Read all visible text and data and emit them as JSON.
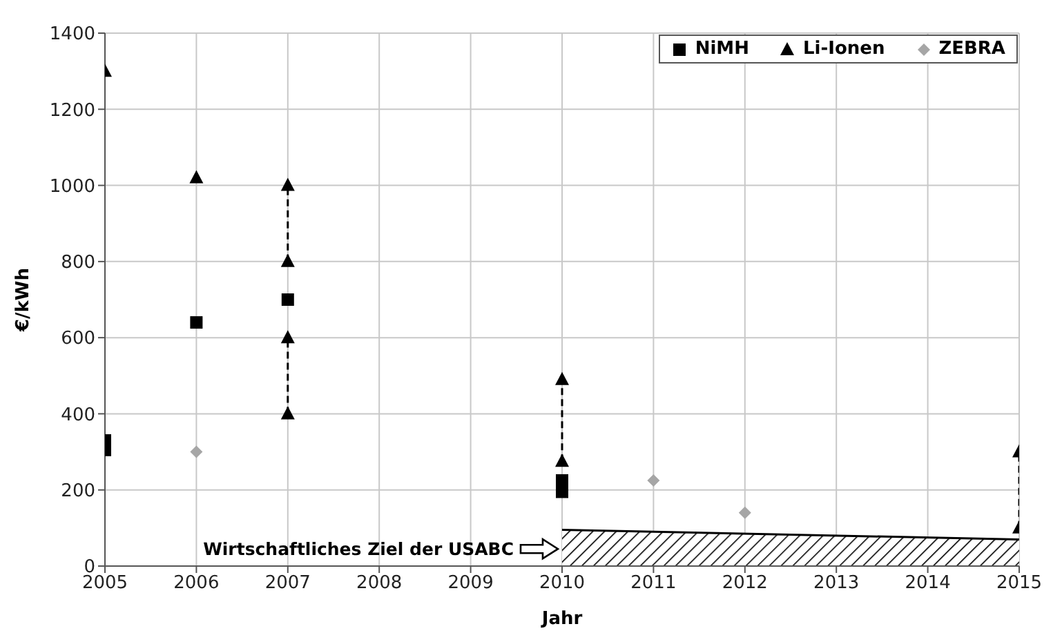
{
  "chart_data": {
    "type": "scatter",
    "xlabel": "Jahr",
    "ylabel": "€/kWh",
    "xlim": [
      2005,
      2015
    ],
    "xticks": [
      2005,
      2006,
      2007,
      2008,
      2009,
      2010,
      2011,
      2012,
      2013,
      2014,
      2015
    ],
    "ylim": [
      0,
      1400
    ],
    "yticks": [
      0,
      200,
      400,
      600,
      800,
      1000,
      1200,
      1400
    ],
    "grid": true,
    "legend": "top right",
    "series": [
      {
        "name": "NiMH",
        "marker": "square",
        "color": "#000000",
        "x": [
          2005,
          2005,
          2006,
          2007,
          2010,
          2010
        ],
        "values": [
          330,
          305,
          640,
          700,
          225,
          195
        ]
      },
      {
        "name": "Li-Ionen",
        "marker": "triangle",
        "color": "#000000",
        "x": [
          2005,
          2006,
          2007,
          2007,
          2007,
          2007,
          2010,
          2010,
          2015,
          2015
        ],
        "values": [
          1300,
          1020,
          1000,
          800,
          600,
          400,
          490,
          275,
          300,
          100
        ]
      },
      {
        "name": "ZEBRA",
        "marker": "diamond",
        "color": "#a6a6a6",
        "x": [
          2006,
          2011,
          2012
        ],
        "values": [
          300,
          225,
          140
        ]
      },
      {
        "type": "line",
        "line_style": "dashed",
        "color": "#000000",
        "x": [
          2007,
          2007
        ],
        "values": [
          800,
          1000
        ]
      },
      {
        "type": "line",
        "line_style": "dashed",
        "color": "#000000",
        "x": [
          2007,
          2007
        ],
        "values": [
          400,
          600
        ]
      },
      {
        "type": "line",
        "line_style": "dashed",
        "color": "#000000",
        "x": [
          2010,
          2010
        ],
        "values": [
          275,
          490
        ]
      },
      {
        "type": "line",
        "line_style": "dashed",
        "color": "#000000",
        "x": [
          2015,
          2015
        ],
        "values": [
          100,
          300
        ]
      },
      {
        "type": "area",
        "color": "#000000",
        "x": [
          2010,
          2015
        ],
        "values": [
          95,
          70
        ]
      }
    ],
    "annotations": [
      {
        "text": "Wirtschaftliches Ziel der USABC",
        "x": 2010,
        "y": 45
      }
    ]
  }
}
